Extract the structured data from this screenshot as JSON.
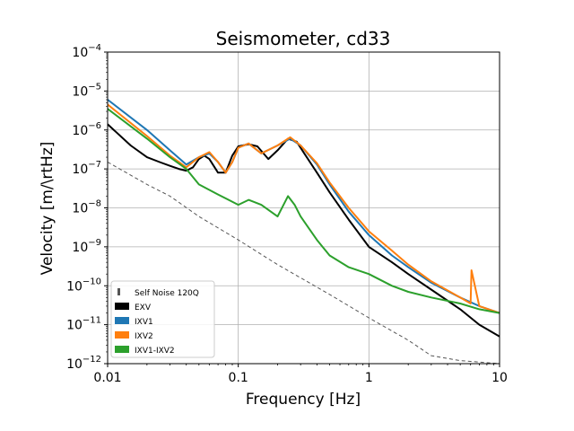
{
  "chart_data": {
    "type": "line",
    "title": "Seismometer, cd33",
    "xlabel": "Frequency [Hz]",
    "ylabel": "Velocity [m/\\rtHz]",
    "xscale": "log",
    "yscale": "log",
    "xlim": [
      0.01,
      10
    ],
    "ylim": [
      1e-12,
      0.0001
    ],
    "grid": true,
    "legend_position": "lower-left",
    "x_ticks": [
      {
        "value": 0.01,
        "label": "0.01"
      },
      {
        "value": 0.1,
        "label": "0.1"
      },
      {
        "value": 1,
        "label": "1"
      },
      {
        "value": 10,
        "label": "10"
      }
    ],
    "y_ticks": [
      {
        "value": 1e-12,
        "base": "10",
        "exp": "−12"
      },
      {
        "value": 1e-11,
        "base": "10",
        "exp": "−11"
      },
      {
        "value": 1e-10,
        "base": "10",
        "exp": "−10"
      },
      {
        "value": 1e-09,
        "base": "10",
        "exp": "−9"
      },
      {
        "value": 1e-08,
        "base": "10",
        "exp": "−8"
      },
      {
        "value": 1e-07,
        "base": "10",
        "exp": "−7"
      },
      {
        "value": 1e-06,
        "base": "10",
        "exp": "−6"
      },
      {
        "value": 1e-05,
        "base": "10",
        "exp": "−5"
      },
      {
        "value": 0.0001,
        "base": "10",
        "exp": "−4"
      }
    ],
    "series": [
      {
        "name": "Self Noise 120Q",
        "color": "#555555",
        "style": "dashed",
        "x": [
          0.01,
          0.02,
          0.03,
          0.05,
          0.1,
          0.2,
          0.5,
          1,
          2,
          3,
          5,
          10
        ],
        "y": [
          1.5e-07,
          4e-08,
          2e-08,
          6e-09,
          1.5e-09,
          3.5e-10,
          6e-11,
          1.5e-11,
          4e-12,
          1.6e-12,
          1.2e-12,
          1e-12
        ]
      },
      {
        "name": "EXV",
        "color": "#000000",
        "style": "solid",
        "x": [
          0.01,
          0.015,
          0.02,
          0.025,
          0.03,
          0.035,
          0.04,
          0.045,
          0.05,
          0.055,
          0.06,
          0.07,
          0.08,
          0.09,
          0.1,
          0.12,
          0.14,
          0.17,
          0.2,
          0.24,
          0.28,
          0.32,
          0.4,
          0.5,
          0.7,
          1,
          1.5,
          2,
          3,
          5,
          7,
          10
        ],
        "y": [
          1.4e-06,
          4e-07,
          2e-07,
          1.5e-07,
          1.2e-07,
          1e-07,
          9e-08,
          1.1e-07,
          1.8e-07,
          2.2e-07,
          1.8e-07,
          8e-08,
          8e-08,
          2.2e-07,
          3.8e-07,
          4.3e-07,
          3.8e-07,
          1.8e-07,
          3e-07,
          6e-07,
          5e-07,
          2.5e-07,
          8e-08,
          2.5e-08,
          5e-09,
          1e-09,
          4e-10,
          2e-10,
          8e-11,
          2.5e-11,
          1e-11,
          5e-12
        ]
      },
      {
        "name": "IXV1",
        "color": "#1f77b4",
        "style": "solid",
        "x": [
          0.01,
          0.02,
          0.03,
          0.04,
          0.05,
          0.06,
          0.07,
          0.08,
          0.09,
          0.1,
          0.12,
          0.15,
          0.2,
          0.25,
          0.3,
          0.4,
          0.5,
          0.7,
          1,
          1.5,
          2,
          3,
          5,
          7,
          10
        ],
        "y": [
          6e-06,
          1e-06,
          3e-07,
          1.3e-07,
          2e-07,
          2.5e-07,
          1.5e-07,
          8e-08,
          1.5e-07,
          3.5e-07,
          4.5e-07,
          2.5e-07,
          4e-07,
          6e-07,
          4e-07,
          1.3e-07,
          4e-08,
          8e-09,
          2e-09,
          6e-10,
          3e-10,
          1.2e-10,
          5e-11,
          3e-11,
          2e-11
        ]
      },
      {
        "name": "IXV2",
        "color": "#ff7f0e",
        "style": "solid",
        "x": [
          0.01,
          0.02,
          0.03,
          0.04,
          0.05,
          0.06,
          0.07,
          0.08,
          0.09,
          0.1,
          0.12,
          0.15,
          0.2,
          0.25,
          0.3,
          0.4,
          0.5,
          0.7,
          1,
          1.5,
          2,
          3,
          5,
          6,
          6.1,
          7,
          10
        ],
        "y": [
          4.5e-06,
          7e-07,
          2.2e-07,
          1.1e-07,
          2e-07,
          2.7e-07,
          1.5e-07,
          8e-08,
          1.5e-07,
          3.5e-07,
          4.5e-07,
          2.5e-07,
          4e-07,
          6.5e-07,
          4e-07,
          1.4e-07,
          4.5e-08,
          1e-08,
          2.5e-09,
          8e-10,
          3.5e-10,
          1.3e-10,
          5e-11,
          3.5e-11,
          2.5e-10,
          3e-11,
          2e-11
        ]
      },
      {
        "name": "IXV1-IXV2",
        "color": "#2ca02c",
        "style": "solid",
        "x": [
          0.01,
          0.02,
          0.03,
          0.04,
          0.05,
          0.07,
          0.1,
          0.12,
          0.15,
          0.2,
          0.24,
          0.27,
          0.3,
          0.4,
          0.5,
          0.7,
          1,
          1.5,
          2,
          3,
          5,
          7,
          10
        ],
        "y": [
          3.5e-06,
          6e-07,
          2e-07,
          1e-07,
          4e-08,
          2.2e-08,
          1.2e-08,
          1.6e-08,
          1.2e-08,
          6e-09,
          2e-08,
          1.2e-08,
          6e-09,
          1.5e-09,
          6e-10,
          3e-10,
          2e-10,
          1e-10,
          7e-11,
          5e-11,
          3.5e-11,
          2.5e-11,
          2e-11
        ]
      }
    ]
  }
}
